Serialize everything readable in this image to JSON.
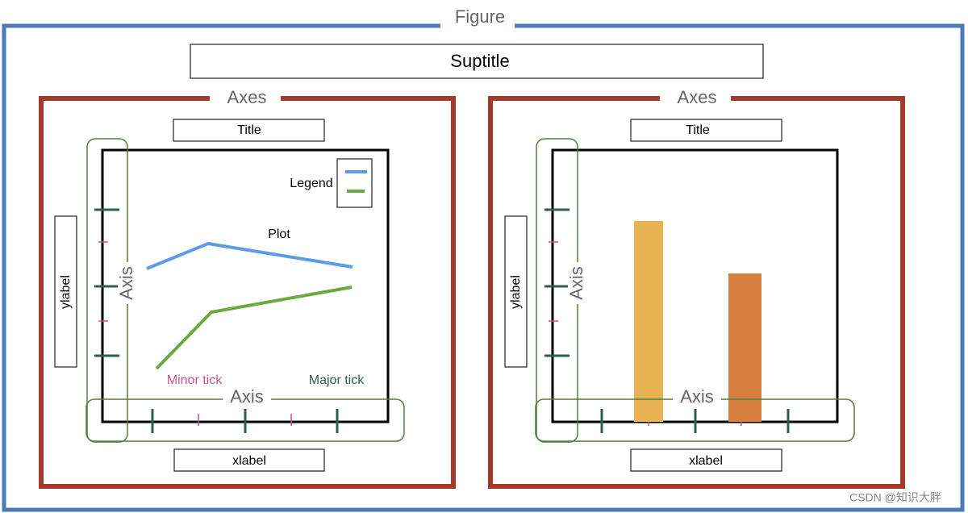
{
  "figure": {
    "label": "Figure",
    "suptitle": "Suptitle"
  },
  "axes": [
    {
      "label": "Axes",
      "title": "Title",
      "ylabel": "ylabel",
      "xlabel": "xlabel",
      "y_axis": "Axis",
      "x_axis": "Axis",
      "legend": "Legend",
      "plot": "Plot",
      "minor_tick": "Minor tick",
      "major_tick": "Major tick"
    },
    {
      "label": "Axes",
      "title": "Title",
      "ylabel": "ylabel",
      "xlabel": "xlabel",
      "y_axis": "Axis",
      "x_axis": "Axis"
    }
  ],
  "watermark": "CSDN @知识大胖"
}
